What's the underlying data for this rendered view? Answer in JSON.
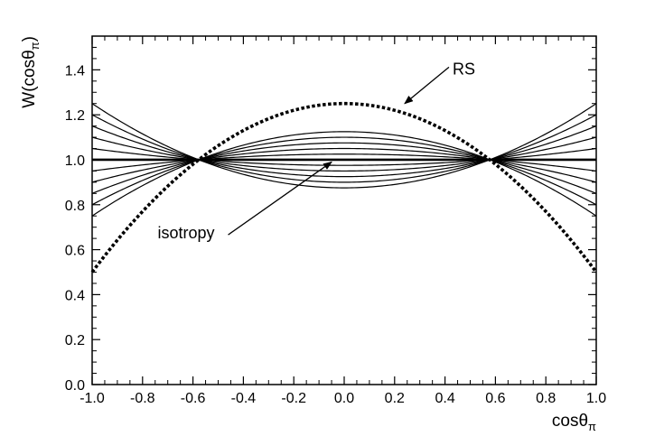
{
  "chart_data": {
    "type": "line",
    "title": "",
    "xlabel": {
      "main": "cosθ",
      "sub": "π"
    },
    "ylabel": {
      "main": "W(cosθ",
      "sub": "π",
      "close": ")"
    },
    "xlim": [
      -1.0,
      1.0
    ],
    "ylim": [
      0.0,
      1.55
    ],
    "x_ticks": [
      -1.0,
      -0.8,
      -0.6,
      -0.4,
      -0.2,
      0.0,
      0.2,
      0.4,
      0.6,
      0.8,
      1.0
    ],
    "x_tick_labels": [
      "-1.0",
      "-0.8",
      "-0.6",
      "-0.4",
      "-0.2",
      "0.0",
      "0.2",
      "0.4",
      "0.6",
      "0.8",
      "1.0"
    ],
    "y_ticks": [
      0.0,
      0.2,
      0.4,
      0.6,
      0.8,
      1.0,
      1.2,
      1.4
    ],
    "y_tick_labels": [
      "0.0",
      "0.2",
      "0.4",
      "0.6",
      "0.8",
      "1.0",
      "1.2",
      "1.4"
    ],
    "functional_form": "W(x) = 1 + c * (3x^2 - 1) / 2",
    "series": [
      {
        "c": 0.25,
        "style": "solid"
      },
      {
        "c": 0.2,
        "style": "solid"
      },
      {
        "c": 0.15,
        "style": "solid"
      },
      {
        "c": 0.1,
        "style": "solid"
      },
      {
        "c": 0.05,
        "style": "solid"
      },
      {
        "c": 0.0,
        "style": "thick"
      },
      {
        "c": -0.05,
        "style": "solid"
      },
      {
        "c": -0.1,
        "style": "solid"
      },
      {
        "c": -0.15,
        "style": "solid"
      },
      {
        "c": -0.2,
        "style": "solid"
      },
      {
        "c": -0.25,
        "style": "solid"
      },
      {
        "c": -0.5,
        "style": "dotted"
      }
    ],
    "annotations": [
      {
        "text": "RS",
        "text_x": 0.43,
        "text_y": 1.38,
        "arrow_to": [
          0.24,
          1.25
        ]
      },
      {
        "text": "isotropy",
        "text_x": -0.74,
        "text_y": 0.65,
        "arrow_to": [
          -0.05,
          0.99
        ]
      }
    ],
    "grid": false,
    "legend": "none"
  }
}
